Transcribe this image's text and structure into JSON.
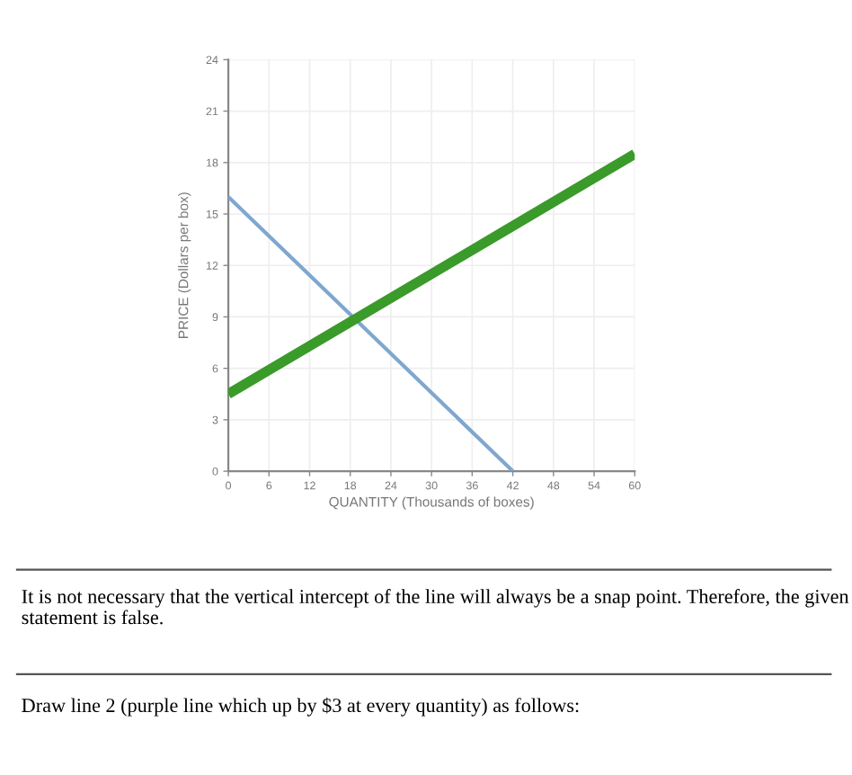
{
  "chart_data": {
    "type": "line",
    "xlabel": "QUANTITY (Thousands of boxes)",
    "ylabel": "PRICE (Dollars per box)",
    "series": [
      {
        "x": [
          0,
          42
        ],
        "values": [
          16,
          0
        ],
        "color": "#7fa7cf"
      },
      {
        "x": [
          0,
          60
        ],
        "values": [
          4.5,
          18.5
        ],
        "color": "#3a9a2a"
      }
    ],
    "xlim": [
      0,
      60
    ],
    "xticks": [
      0,
      6,
      12,
      18,
      24,
      30,
      36,
      42,
      48,
      54,
      60
    ],
    "ylim": [
      0,
      24
    ],
    "yticks": [
      0,
      3,
      6,
      9,
      12,
      15,
      18,
      21,
      24
    ],
    "grid": true,
    "marker": "none",
    "line_style": "solid",
    "annotations": [
      "It is not necessary that the vertical intercept of the line will always be a snap point. Therefore, the given statement is false.",
      "Draw line 2 (purple line which up by $3 at every quantity) as follows:"
    ]
  }
}
